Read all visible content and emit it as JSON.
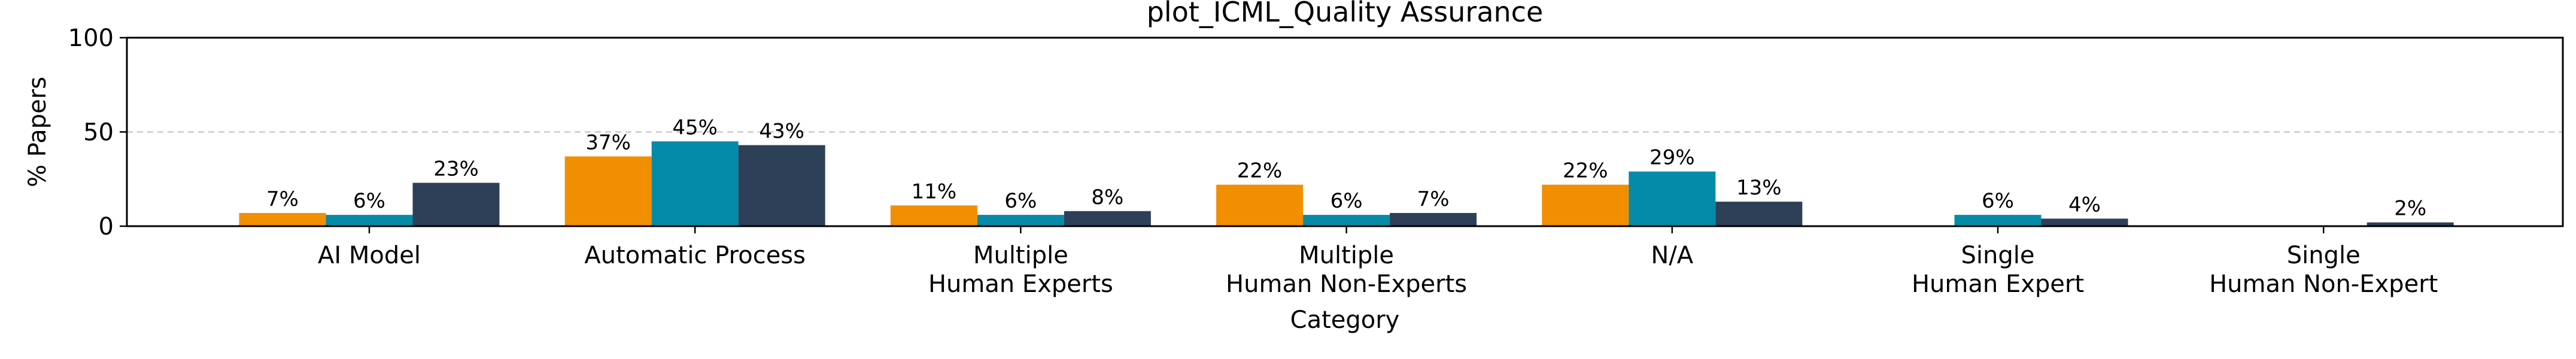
{
  "chart_data": {
    "type": "bar",
    "title": "plot_ICML_Quality Assurance",
    "xlabel": "Category",
    "ylabel": "% Papers",
    "ylim": [
      0,
      100
    ],
    "yticks": [
      0,
      50,
      100
    ],
    "grid": "horizontal dashed at 50",
    "legend": "none",
    "categories": [
      [
        "AI Model"
      ],
      [
        "Automatic Process"
      ],
      [
        "Multiple",
        "Human Experts"
      ],
      [
        "Multiple",
        "Human Non-Experts"
      ],
      [
        "N/A"
      ],
      [
        "Single",
        "Human Expert"
      ],
      [
        "Single",
        "Human Non-Expert"
      ]
    ],
    "series": [
      {
        "name": "series-1",
        "color": "#F18F01",
        "values": [
          7,
          37,
          11,
          22,
          22,
          0,
          0
        ],
        "labels": [
          "7%",
          "37%",
          "11%",
          "22%",
          "22%",
          "",
          ""
        ]
      },
      {
        "name": "series-2",
        "color": "#048BA8",
        "values": [
          6,
          45,
          6,
          6,
          29,
          6,
          0
        ],
        "labels": [
          "6%",
          "45%",
          "6%",
          "6%",
          "29%",
          "6%",
          ""
        ]
      },
      {
        "name": "series-3",
        "color": "#2E4057",
        "values": [
          23,
          43,
          8,
          7,
          13,
          4,
          2
        ],
        "labels": [
          "23%",
          "43%",
          "8%",
          "7%",
          "13%",
          "4%",
          "2%"
        ]
      }
    ]
  }
}
